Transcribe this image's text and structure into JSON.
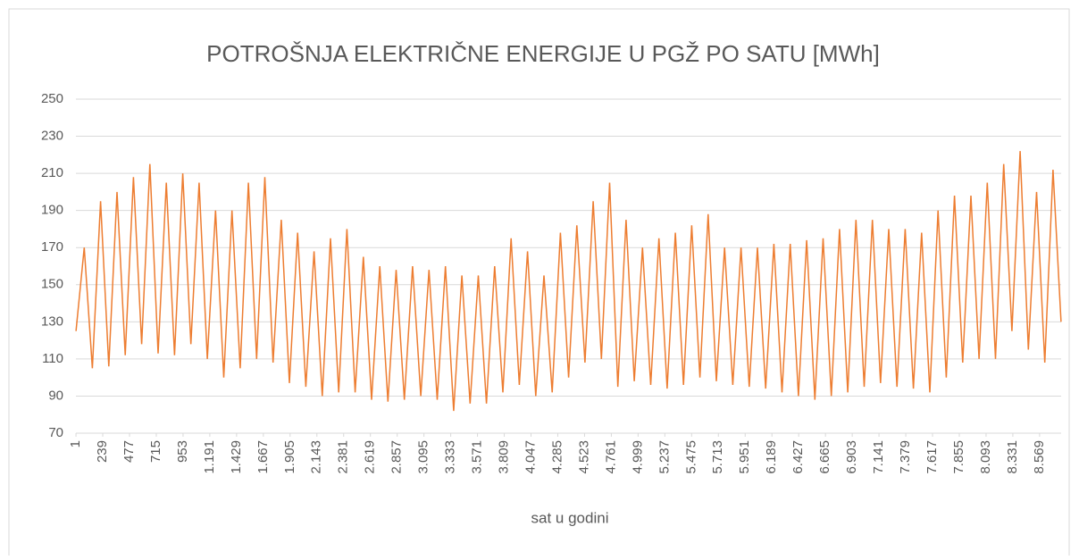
{
  "chart_data": {
    "type": "line",
    "title": "POTROŠNJA ELEKTRIČNE ENERGIJE U PGŽ PO SATU [MWh]",
    "x_label": "sat u godini",
    "color": "#ed7d31",
    "grid": true,
    "x": [
      1,
      74,
      147,
      220,
      293,
      366,
      439,
      512,
      585,
      658,
      731,
      804,
      877,
      950,
      1023,
      1096,
      1169,
      1242,
      1315,
      1388,
      1461,
      1534,
      1607,
      1680,
      1753,
      1826,
      1899,
      1972,
      2045,
      2118,
      2191,
      2264,
      2337,
      2410,
      2483,
      2556,
      2629,
      2702,
      2775,
      2848,
      2921,
      2994,
      3067,
      3140,
      3213,
      3286,
      3359,
      3432,
      3505,
      3578,
      3651,
      3724,
      3797,
      3870,
      3943,
      4016,
      4089,
      4162,
      4235,
      4308,
      4381,
      4454,
      4527,
      4600,
      4673,
      4746,
      4819,
      4892,
      4965,
      5038,
      5111,
      5184,
      5257,
      5330,
      5403,
      5476,
      5549,
      5622,
      5695,
      5768,
      5841,
      5914,
      5987,
      6060,
      6133,
      6206,
      6279,
      6352,
      6425,
      6498,
      6571,
      6644,
      6717,
      6790,
      6863,
      6936,
      7009,
      7082,
      7155,
      7228,
      7301,
      7374,
      7447,
      7520,
      7593,
      7666,
      7739,
      7812,
      7885,
      7958,
      8031,
      8104,
      8177,
      8250,
      8323,
      8396,
      8469,
      8542,
      8615,
      8688,
      8760
    ],
    "values": [
      125,
      170,
      105,
      195,
      106,
      200,
      112,
      208,
      118,
      215,
      113,
      205,
      112,
      210,
      118,
      205,
      110,
      190,
      100,
      190,
      105,
      205,
      110,
      208,
      108,
      185,
      97,
      178,
      95,
      168,
      90,
      175,
      92,
      180,
      92,
      165,
      88,
      160,
      87,
      158,
      88,
      160,
      90,
      158,
      88,
      160,
      82,
      155,
      86,
      155,
      86,
      160,
      92,
      175,
      96,
      168,
      90,
      155,
      92,
      178,
      100,
      182,
      108,
      195,
      110,
      205,
      95,
      185,
      98,
      170,
      96,
      175,
      94,
      178,
      96,
      182,
      100,
      188,
      98,
      170,
      96,
      170,
      95,
      170,
      94,
      172,
      92,
      172,
      90,
      174,
      88,
      175,
      90,
      180,
      92,
      185,
      95,
      185,
      97,
      180,
      95,
      180,
      94,
      178,
      92,
      190,
      100,
      198,
      108,
      198,
      110,
      205,
      110,
      215,
      125,
      222,
      115,
      200,
      108,
      212,
      130
    ],
    "xlim": [
      0.5,
      8760.5
    ],
    "xticks": [
      1,
      239,
      477,
      715,
      953,
      {
        "value": 1191,
        "label": "1.191"
      },
      {
        "value": 1429,
        "label": "1.429"
      },
      {
        "value": 1667,
        "label": "1.667"
      },
      {
        "value": 1905,
        "label": "1.905"
      },
      {
        "value": 2143,
        "label": "2.143"
      },
      {
        "value": 2381,
        "label": "2.381"
      },
      {
        "value": 2619,
        "label": "2.619"
      },
      {
        "value": 2857,
        "label": "2.857"
      },
      {
        "value": 3095,
        "label": "3.095"
      },
      {
        "value": 3333,
        "label": "3.333"
      },
      {
        "value": 3571,
        "label": "3.571"
      },
      {
        "value": 3809,
        "label": "3.809"
      },
      {
        "value": 4047,
        "label": "4.047"
      },
      {
        "value": 4285,
        "label": "4.285"
      },
      {
        "value": 4523,
        "label": "4.523"
      },
      {
        "value": 4761,
        "label": "4.761"
      },
      {
        "value": 4999,
        "label": "4.999"
      },
      {
        "value": 5237,
        "label": "5.237"
      },
      {
        "value": 5475,
        "label": "5.475"
      },
      {
        "value": 5713,
        "label": "5.713"
      },
      {
        "value": 5951,
        "label": "5.951"
      },
      {
        "value": 6189,
        "label": "6.189"
      },
      {
        "value": 6427,
        "label": "6.427"
      },
      {
        "value": 6665,
        "label": "6.665"
      },
      {
        "value": 6903,
        "label": "6.903"
      },
      {
        "value": 7141,
        "label": "7.141"
      },
      {
        "value": 7379,
        "label": "7.379"
      },
      {
        "value": 7617,
        "label": "7.617"
      },
      {
        "value": 7855,
        "label": "7.855"
      },
      {
        "value": 8093,
        "label": "8.093"
      },
      {
        "value": 8331,
        "label": "8.331"
      },
      {
        "value": 8569,
        "label": "8.569"
      }
    ],
    "ylim": [
      70,
      250
    ],
    "yticks": [
      70,
      90,
      110,
      130,
      150,
      170,
      190,
      210,
      230,
      250
    ]
  }
}
